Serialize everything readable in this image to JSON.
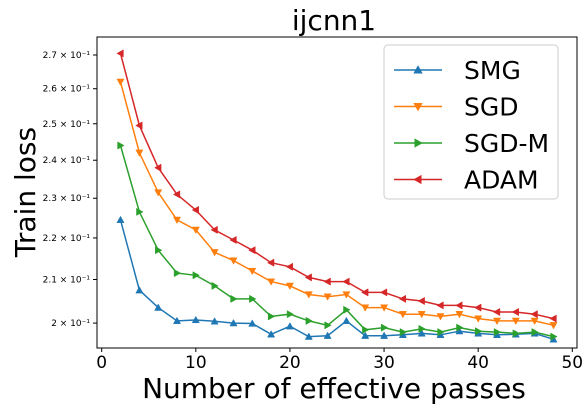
{
  "chart_data": {
    "type": "line",
    "title": "ijcnn1",
    "xlabel": "Number of effective passes",
    "ylabel": "Train loss",
    "yscale": "log",
    "xlim": [
      -0.5,
      50.5
    ],
    "ylim": [
      0.1945,
      0.2755
    ],
    "grid": false,
    "legend_position": "top-right",
    "x_ticks": [
      0,
      10,
      20,
      30,
      40,
      50
    ],
    "x_tick_labels": [
      "0",
      "10",
      "20",
      "30",
      "40",
      "50"
    ],
    "y_ticks": [
      0.2,
      0.21,
      0.22,
      0.23,
      0.24,
      0.25,
      0.26,
      0.27
    ],
    "y_tick_labels": [
      "2 × 10⁻¹",
      "2.1 × 10⁻¹",
      "2.2 × 10⁻¹",
      "2.3 × 10⁻¹",
      "2.4 × 10⁻¹",
      "2.5 × 10⁻¹",
      "2.6 × 10⁻¹",
      "2.7 × 10⁻¹"
    ],
    "x": [
      2,
      4,
      6,
      8,
      10,
      12,
      14,
      16,
      18,
      20,
      22,
      24,
      26,
      28,
      30,
      32,
      34,
      36,
      38,
      40,
      42,
      44,
      46,
      48
    ],
    "series": [
      {
        "name": "SMG",
        "color": "#1f77b4",
        "marker": "triangle-up",
        "values": [
          0.2245,
          0.2075,
          0.2035,
          0.2005,
          0.2007,
          0.2004,
          0.2,
          0.1999,
          0.1975,
          0.1993,
          0.197,
          0.1972,
          0.2005,
          0.1972,
          0.1972,
          0.1974,
          0.1977,
          0.1974,
          0.1982,
          0.1977,
          0.1974,
          0.1975,
          0.1977,
          0.1964
        ]
      },
      {
        "name": "SGD",
        "color": "#ff7f0e",
        "marker": "triangle-down",
        "values": [
          0.262,
          0.242,
          0.2315,
          0.2245,
          0.222,
          0.2165,
          0.2145,
          0.212,
          0.2095,
          0.2085,
          0.2065,
          0.206,
          0.2065,
          0.2035,
          0.2035,
          0.202,
          0.202,
          0.2015,
          0.202,
          0.201,
          0.2005,
          0.2005,
          0.2005,
          0.1995
        ]
      },
      {
        "name": "SGD-M",
        "color": "#2ca02c",
        "marker": "triangle-right",
        "values": [
          0.244,
          0.2265,
          0.217,
          0.2115,
          0.211,
          0.2085,
          0.2055,
          0.2055,
          0.2015,
          0.202,
          0.2005,
          0.1995,
          0.203,
          0.1985,
          0.199,
          0.198,
          0.1987,
          0.198,
          0.199,
          0.1982,
          0.198,
          0.1977,
          0.198,
          0.197
        ]
      },
      {
        "name": "ADAM",
        "color": "#d62728",
        "marker": "triangle-left",
        "values": [
          0.2705,
          0.2495,
          0.238,
          0.231,
          0.227,
          0.222,
          0.2195,
          0.217,
          0.214,
          0.213,
          0.2105,
          0.2095,
          0.2095,
          0.207,
          0.207,
          0.2055,
          0.205,
          0.204,
          0.204,
          0.2035,
          0.2025,
          0.2025,
          0.202,
          0.201
        ]
      }
    ]
  }
}
